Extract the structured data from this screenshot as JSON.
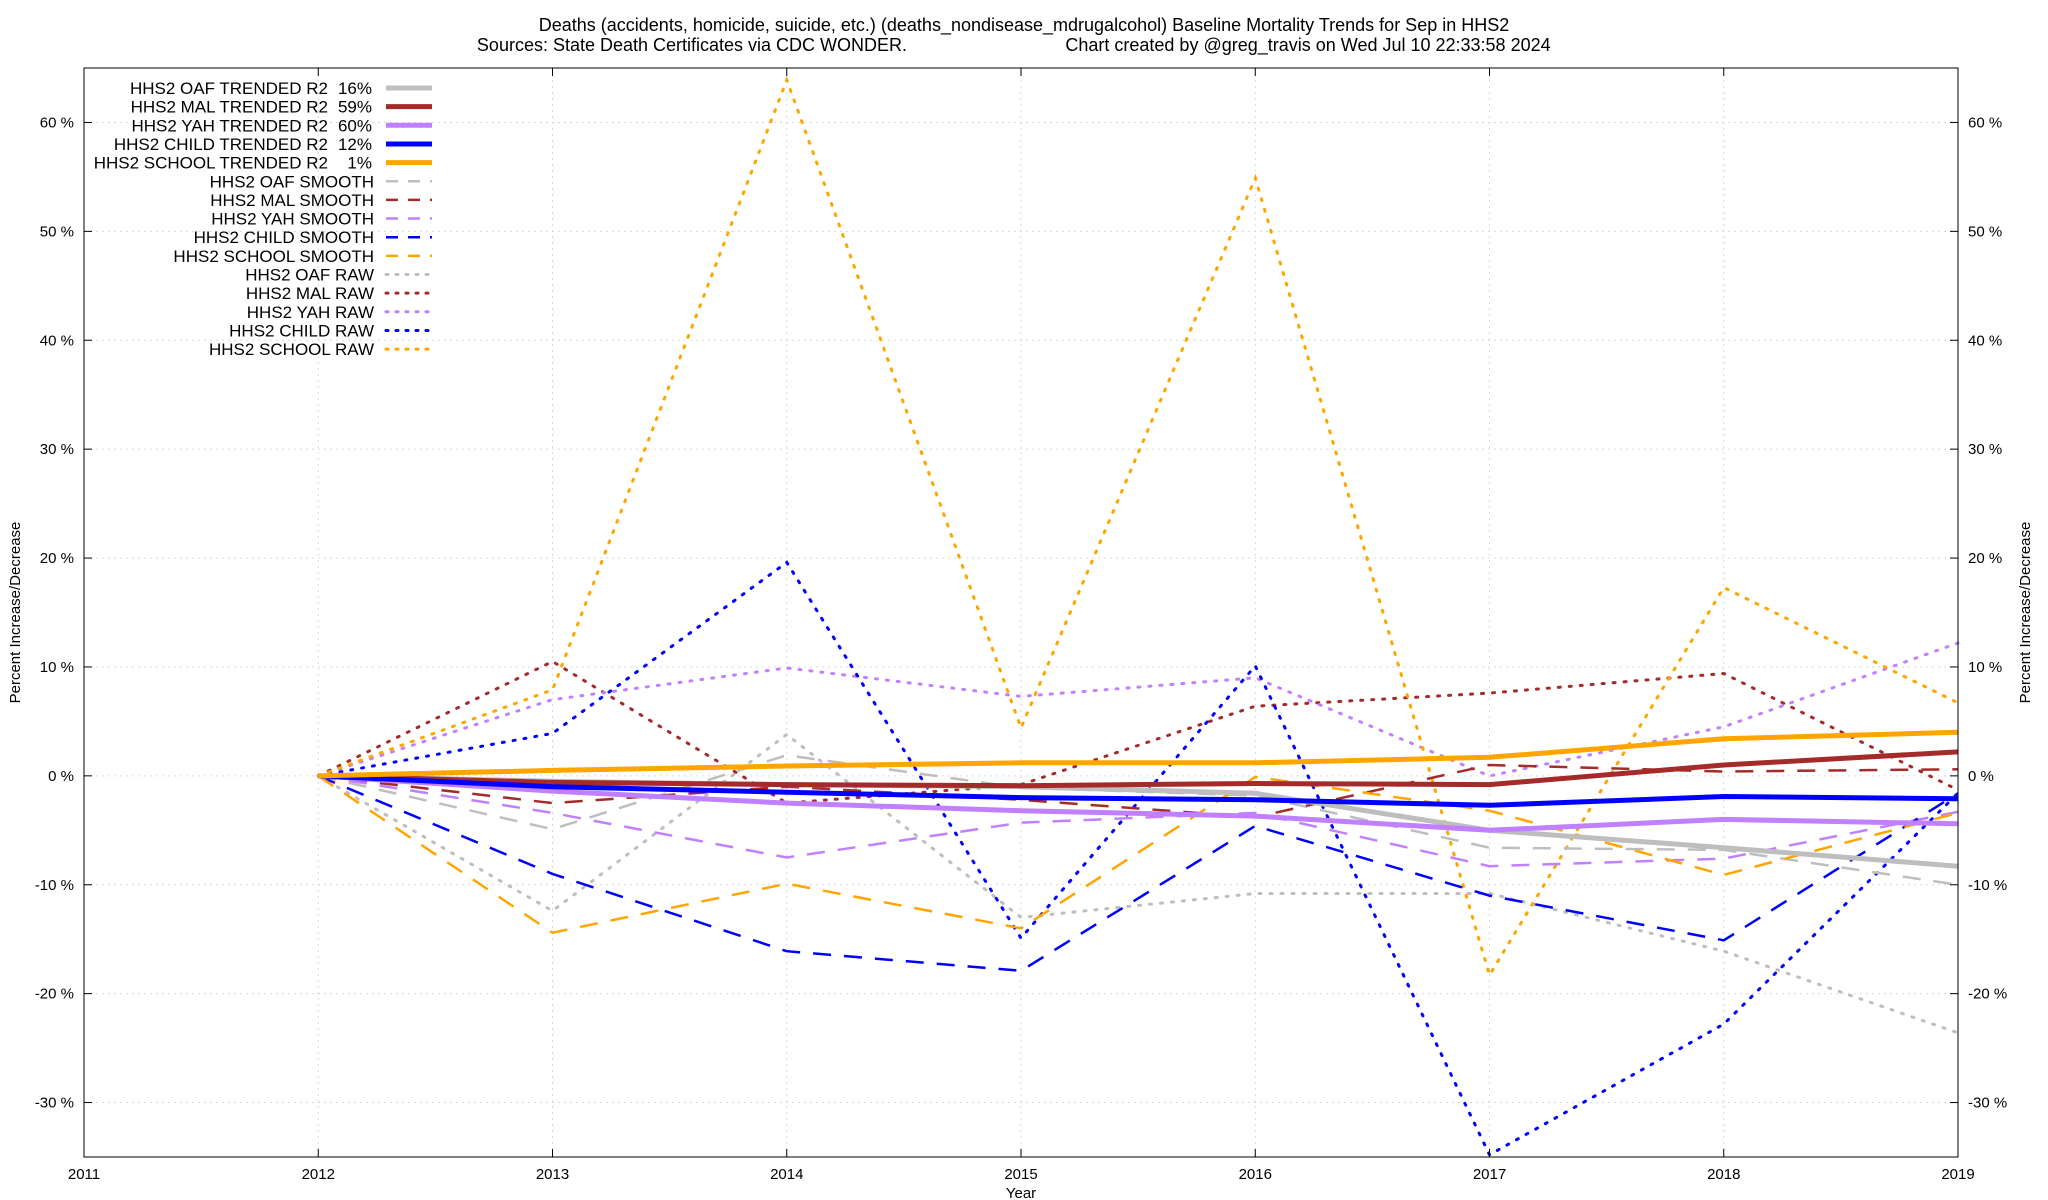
{
  "chart_data": {
    "type": "line",
    "title_line1": "Deaths (accidents, homicide, suicide, etc.) (deaths_nondisease_mdrugalcohol)  Baseline Mortality Trends for Sep in HHS2",
    "title_line2_left": "Sources: State Death Certificates via CDC WONDER.",
    "title_line2_right": "Chart created by @greg_travis on Wed Jul 10 22:33:58 2024",
    "xlabel": "Year",
    "ylabel_left": "Percent Increase/Decrease",
    "ylabel_right": "Percent Increase/Decrease",
    "xlim": [
      2011,
      2019
    ],
    "ylim": [
      -35,
      65
    ],
    "x_ticks": [
      "2011",
      "2012",
      "2013",
      "2014",
      "2015",
      "2016",
      "2017",
      "2018",
      "2019"
    ],
    "y_ticks": [
      "-30 %",
      "-20 %",
      "-10 %",
      "0 %",
      "10 %",
      "20 %",
      "30 %",
      "40 %",
      "50 %",
      "60 %"
    ],
    "y_tick_values": [
      -30,
      -20,
      -10,
      0,
      10,
      20,
      30,
      40,
      50,
      60
    ],
    "grid": true,
    "legend_position": "top-left",
    "x": [
      2012,
      2013,
      2014,
      2015,
      2016,
      2017,
      2018,
      2019
    ],
    "series": [
      {
        "name": "HHS2 OAF TRENDED R2",
        "r2": "16%",
        "style": "solid",
        "color": "#bebebe",
        "values": [
          0,
          -0.5,
          -0.8,
          -1.0,
          -1.6,
          -5.0,
          -6.6,
          -8.3
        ]
      },
      {
        "name": "HHS2 MAL TRENDED R2",
        "r2": "59%",
        "style": "solid",
        "color": "#a52a2a",
        "values": [
          0,
          -0.6,
          -0.8,
          -0.9,
          -0.7,
          -0.8,
          1.0,
          2.2
        ]
      },
      {
        "name": "HHS2 YAH TRENDED R2",
        "r2": "60%",
        "style": "solid",
        "color": "#c080ff",
        "values": [
          0,
          -1.4,
          -2.5,
          -3.2,
          -3.7,
          -5.0,
          -4.0,
          -4.4
        ]
      },
      {
        "name": "HHS2 CHILD TRENDED R2",
        "r2": "12%",
        "style": "solid",
        "color": "#0000ff",
        "values": [
          0,
          -1.0,
          -1.5,
          -2.0,
          -2.2,
          -2.7,
          -1.9,
          -2.1
        ]
      },
      {
        "name": "HHS2 SCHOOL TRENDED R2",
        "r2": "1%",
        "style": "solid",
        "color": "#ffa500",
        "values": [
          0,
          0.5,
          0.9,
          1.2,
          1.2,
          1.7,
          3.4,
          4.0
        ]
      },
      {
        "name": "HHS2 OAF SMOOTH",
        "r2": "",
        "style": "dash",
        "color": "#bebebe",
        "values": [
          0,
          -4.9,
          1.9,
          -1.1,
          -1.8,
          -6.6,
          -6.8,
          -10.0
        ]
      },
      {
        "name": "HHS2 MAL SMOOTH",
        "r2": "",
        "style": "dash",
        "color": "#a52a2a",
        "values": [
          0,
          -2.5,
          -1.0,
          -2.2,
          -3.8,
          1.0,
          0.4,
          0.6
        ]
      },
      {
        "name": "HHS2 YAH SMOOTH",
        "r2": "",
        "style": "dash",
        "color": "#c080ff",
        "values": [
          0,
          -3.4,
          -7.5,
          -4.3,
          -3.4,
          -8.3,
          -7.6,
          -3.3
        ]
      },
      {
        "name": "HHS2 CHILD SMOOTH",
        "r2": "",
        "style": "dash",
        "color": "#0000ff",
        "values": [
          0,
          -9.0,
          -16.1,
          -17.9,
          -4.6,
          -11.0,
          -15.1,
          -1.6
        ]
      },
      {
        "name": "HHS2 SCHOOL SMOOTH",
        "r2": "",
        "style": "dash",
        "color": "#ffa500",
        "values": [
          0,
          -14.4,
          -9.9,
          -14.0,
          -0.1,
          -3.2,
          -9.1,
          -3.4
        ]
      },
      {
        "name": "HHS2 OAF RAW",
        "r2": "",
        "style": "dot",
        "color": "#bebebe",
        "values": [
          0,
          -12.4,
          3.8,
          -13.0,
          -10.8,
          -10.8,
          -16.1,
          -23.6
        ]
      },
      {
        "name": "HHS2 MAL RAW",
        "r2": "",
        "style": "dot",
        "color": "#a52a2a",
        "values": [
          0,
          10.5,
          -2.5,
          -0.8,
          6.4,
          7.6,
          9.4,
          -1.3
        ]
      },
      {
        "name": "HHS2 YAH RAW",
        "r2": "",
        "style": "dot",
        "color": "#c080ff",
        "values": [
          0,
          7.0,
          9.9,
          7.3,
          9.0,
          0.0,
          4.5,
          12.2
        ]
      },
      {
        "name": "HHS2 CHILD RAW",
        "r2": "",
        "style": "dot",
        "color": "#0000ff",
        "values": [
          0,
          3.9,
          19.6,
          -14.9,
          10.1,
          -34.8,
          -22.8,
          -1.6
        ]
      },
      {
        "name": "HHS2 SCHOOL RAW",
        "r2": "",
        "style": "dot",
        "color": "#ffa500",
        "values": [
          0,
          7.9,
          63.9,
          4.4,
          54.9,
          -18.3,
          17.3,
          6.7
        ]
      }
    ]
  }
}
